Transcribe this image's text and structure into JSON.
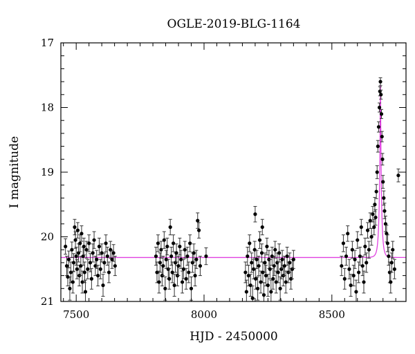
{
  "chart_data": {
    "type": "scatter",
    "title": "OGLE-2019-BLG-1164",
    "xlabel": "HJD - 2450000",
    "ylabel": "I magnitude",
    "xlim": [
      7440,
      8790
    ],
    "ylim": [
      21,
      17
    ],
    "y_inverted": true,
    "x_ticks": [
      7500,
      8000,
      8500
    ],
    "y_ticks": [
      17,
      18,
      19,
      20,
      21
    ],
    "grid": false,
    "colors": {
      "points": "#000000",
      "model": "#e040e0"
    },
    "series": [
      {
        "type": "errorbar_points",
        "points": [
          [
            7458,
            20.15,
            0.12
          ],
          [
            7463,
            20.45,
            0.15
          ],
          [
            7467,
            20.62,
            0.14
          ],
          [
            7471,
            20.35,
            0.13
          ],
          [
            7475,
            20.8,
            0.18
          ],
          [
            7479,
            20.55,
            0.16
          ],
          [
            7483,
            20.2,
            0.12
          ],
          [
            7487,
            20.7,
            0.17
          ],
          [
            7490,
            20.4,
            0.14
          ],
          [
            7494,
            19.85,
            0.12
          ],
          [
            7497,
            20.05,
            0.13
          ],
          [
            7500,
            20.3,
            0.14
          ],
          [
            7503,
            20.5,
            0.15
          ],
          [
            7506,
            19.9,
            0.12
          ],
          [
            7509,
            20.25,
            0.14
          ],
          [
            7512,
            20.6,
            0.16
          ],
          [
            7515,
            20.1,
            0.13
          ],
          [
            7518,
            20.45,
            0.15
          ],
          [
            7521,
            19.95,
            0.12
          ],
          [
            7524,
            20.7,
            0.17
          ],
          [
            7527,
            20.3,
            0.14
          ],
          [
            7530,
            20.15,
            0.13
          ],
          [
            7533,
            20.55,
            0.16
          ],
          [
            7536,
            20.85,
            0.18
          ],
          [
            7540,
            20.2,
            0.13
          ],
          [
            7545,
            20.5,
            0.15
          ],
          [
            7550,
            20.1,
            0.13
          ],
          [
            7555,
            20.4,
            0.14
          ],
          [
            7560,
            20.65,
            0.16
          ],
          [
            7565,
            20.25,
            0.14
          ],
          [
            7570,
            20.05,
            0.13
          ],
          [
            7575,
            20.45,
            0.15
          ],
          [
            7580,
            20.35,
            0.14
          ],
          [
            7585,
            20.6,
            0.16
          ],
          [
            7590,
            20.15,
            0.13
          ],
          [
            7595,
            20.5,
            0.15
          ],
          [
            7600,
            20.25,
            0.14
          ],
          [
            7605,
            20.75,
            0.17
          ],
          [
            7610,
            20.4,
            0.15
          ],
          [
            7616,
            20.1,
            0.13
          ],
          [
            7622,
            20.3,
            0.14
          ],
          [
            7628,
            20.55,
            0.16
          ],
          [
            7634,
            20.2,
            0.13
          ],
          [
            7640,
            20.35,
            0.14
          ],
          [
            7646,
            20.25,
            0.13
          ],
          [
            7652,
            20.45,
            0.15
          ],
          [
            7812,
            20.3,
            0.14
          ],
          [
            7816,
            20.55,
            0.16
          ],
          [
            7820,
            20.1,
            0.13
          ],
          [
            7824,
            20.7,
            0.17
          ],
          [
            7828,
            20.4,
            0.15
          ],
          [
            7832,
            20.2,
            0.13
          ],
          [
            7836,
            20.6,
            0.16
          ],
          [
            7840,
            20.45,
            0.15
          ],
          [
            7844,
            20.05,
            0.13
          ],
          [
            7848,
            20.8,
            0.18
          ],
          [
            7852,
            20.35,
            0.14
          ],
          [
            7856,
            20.15,
            0.13
          ],
          [
            7860,
            20.5,
            0.15
          ],
          [
            7864,
            20.65,
            0.16
          ],
          [
            7868,
            19.85,
            0.12
          ],
          [
            7872,
            20.3,
            0.14
          ],
          [
            7876,
            20.55,
            0.16
          ],
          [
            7880,
            20.1,
            0.13
          ],
          [
            7884,
            20.75,
            0.17
          ],
          [
            7888,
            20.4,
            0.15
          ],
          [
            7892,
            20.25,
            0.14
          ],
          [
            7896,
            20.6,
            0.16
          ],
          [
            7900,
            20.45,
            0.15
          ],
          [
            7905,
            20.15,
            0.13
          ],
          [
            7910,
            20.35,
            0.14
          ],
          [
            7915,
            20.7,
            0.17
          ],
          [
            7920,
            20.5,
            0.15
          ],
          [
            7925,
            20.2,
            0.13
          ],
          [
            7930,
            20.65,
            0.16
          ],
          [
            7935,
            20.3,
            0.14
          ],
          [
            7940,
            20.55,
            0.16
          ],
          [
            7945,
            20.1,
            0.13
          ],
          [
            7950,
            20.8,
            0.18
          ],
          [
            7955,
            20.4,
            0.15
          ],
          [
            7960,
            20.25,
            0.14
          ],
          [
            7965,
            20.6,
            0.16
          ],
          [
            7970,
            20.35,
            0.14
          ],
          [
            7975,
            19.75,
            0.12
          ],
          [
            7980,
            19.9,
            0.12
          ],
          [
            7985,
            20.45,
            0.15
          ],
          [
            8008,
            20.3,
            0.13
          ],
          [
            8162,
            20.55,
            0.16
          ],
          [
            8166,
            20.85,
            0.18
          ],
          [
            8170,
            20.3,
            0.14
          ],
          [
            8174,
            20.6,
            0.16
          ],
          [
            8178,
            20.1,
            0.13
          ],
          [
            8182,
            20.75,
            0.17
          ],
          [
            8186,
            20.4,
            0.15
          ],
          [
            8190,
            20.95,
            0.19
          ],
          [
            8194,
            20.5,
            0.15
          ],
          [
            8198,
            20.2,
            0.13
          ],
          [
            8202,
            20.65,
            0.16
          ],
          [
            8206,
            20.35,
            0.14
          ],
          [
            8210,
            20.8,
            0.18
          ],
          [
            8214,
            20.45,
            0.15
          ],
          [
            8218,
            20.05,
            0.13
          ],
          [
            8222,
            20.7,
            0.17
          ],
          [
            8226,
            20.25,
            0.14
          ],
          [
            8230,
            20.55,
            0.16
          ],
          [
            8234,
            20.9,
            0.19
          ],
          [
            8238,
            20.4,
            0.15
          ],
          [
            8242,
            20.6,
            0.16
          ],
          [
            8246,
            20.15,
            0.13
          ],
          [
            8250,
            20.75,
            0.17
          ],
          [
            8254,
            20.35,
            0.14
          ],
          [
            8258,
            20.5,
            0.15
          ],
          [
            8262,
            20.85,
            0.18
          ],
          [
            8266,
            20.3,
            0.14
          ],
          [
            8270,
            20.65,
            0.16
          ],
          [
            8274,
            20.45,
            0.15
          ],
          [
            8278,
            20.2,
            0.13
          ],
          [
            8282,
            20.7,
            0.17
          ],
          [
            8286,
            20.4,
            0.15
          ],
          [
            8290,
            20.55,
            0.16
          ],
          [
            8294,
            20.25,
            0.14
          ],
          [
            8298,
            20.8,
            0.18
          ],
          [
            8302,
            20.5,
            0.15
          ],
          [
            8306,
            20.35,
            0.14
          ],
          [
            8310,
            20.6,
            0.16
          ],
          [
            8315,
            20.45,
            0.15
          ],
          [
            8320,
            20.7,
            0.17
          ],
          [
            8325,
            20.3,
            0.14
          ],
          [
            8330,
            20.55,
            0.16
          ],
          [
            8335,
            20.4,
            0.15
          ],
          [
            8340,
            20.65,
            0.16
          ],
          [
            8345,
            20.5,
            0.15
          ],
          [
            8350,
            20.35,
            0.14
          ],
          [
            8200,
            19.65,
            0.12
          ],
          [
            8228,
            19.85,
            0.12
          ],
          [
            8538,
            20.45,
            0.15
          ],
          [
            8545,
            20.1,
            0.13
          ],
          [
            8550,
            20.65,
            0.16
          ],
          [
            8556,
            20.3,
            0.14
          ],
          [
            8562,
            19.95,
            0.12
          ],
          [
            8568,
            20.5,
            0.15
          ],
          [
            8574,
            20.75,
            0.17
          ],
          [
            8580,
            20.2,
            0.13
          ],
          [
            8585,
            20.6,
            0.16
          ],
          [
            8590,
            20.35,
            0.14
          ],
          [
            8595,
            20.85,
            0.18
          ],
          [
            8600,
            20.05,
            0.13
          ],
          [
            8605,
            20.55,
            0.16
          ],
          [
            8610,
            20.3,
            0.14
          ],
          [
            8615,
            19.85,
            0.12
          ],
          [
            8620,
            20.45,
            0.15
          ],
          [
            8625,
            20.7,
            0.17
          ],
          [
            8630,
            20.15,
            0.13
          ],
          [
            8635,
            20.4,
            0.15
          ],
          [
            8640,
            19.9,
            0.12
          ],
          [
            8645,
            20.2,
            0.13
          ],
          [
            8650,
            19.75,
            0.12
          ],
          [
            8655,
            20.0,
            0.13
          ],
          [
            8660,
            19.65,
            0.12
          ],
          [
            8665,
            19.85,
            0.12
          ],
          [
            8668,
            19.5,
            0.11
          ],
          [
            8671,
            19.7,
            0.12
          ],
          [
            8674,
            19.3,
            0.11
          ],
          [
            8677,
            19.0,
            0.1
          ],
          [
            8680,
            18.6,
            0.09
          ],
          [
            8683,
            18.3,
            0.08
          ],
          [
            8686,
            18.0,
            0.07
          ],
          [
            8688,
            17.75,
            0.07
          ],
          [
            8690,
            17.6,
            0.06
          ],
          [
            8692,
            17.8,
            0.07
          ],
          [
            8694,
            18.1,
            0.07
          ],
          [
            8696,
            18.45,
            0.08
          ],
          [
            8698,
            18.8,
            0.09
          ],
          [
            8700,
            19.15,
            0.1
          ],
          [
            8703,
            19.4,
            0.11
          ],
          [
            8706,
            19.6,
            0.12
          ],
          [
            8710,
            19.8,
            0.12
          ],
          [
            8714,
            19.95,
            0.13
          ],
          [
            8718,
            20.1,
            0.13
          ],
          [
            8722,
            20.3,
            0.14
          ],
          [
            8726,
            20.55,
            0.16
          ],
          [
            8730,
            20.7,
            0.17
          ],
          [
            8734,
            20.4,
            0.15
          ],
          [
            8738,
            20.2,
            0.13
          ],
          [
            8745,
            20.5,
            0.15
          ],
          [
            8760,
            19.05,
            0.1
          ]
        ]
      },
      {
        "type": "model_curve",
        "baseline": 20.32,
        "t0": 8690,
        "peak_mag": 17.65,
        "tE": 9
      }
    ]
  }
}
